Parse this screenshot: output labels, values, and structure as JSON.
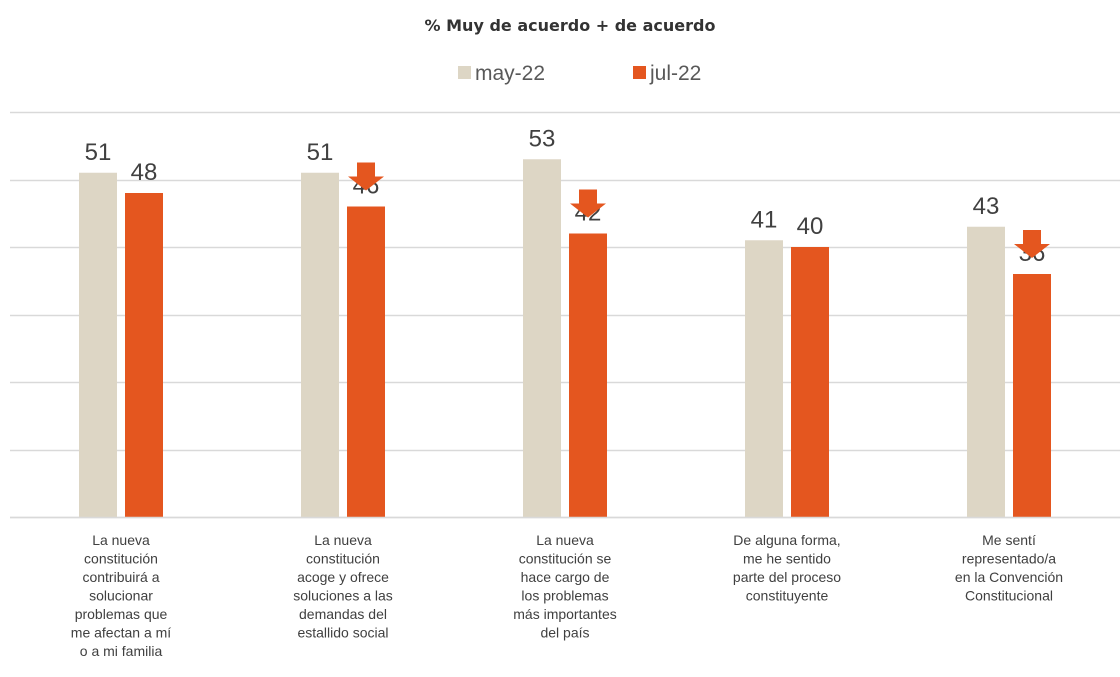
{
  "chart_data": {
    "type": "bar",
    "title": "% Muy de acuerdo + de acuerdo",
    "legend_position": "top",
    "grid": true,
    "ylim": [
      0,
      60
    ],
    "categories": [
      [
        "La nueva",
        "constitución",
        "contribuirá a",
        "solucionar",
        "problemas que",
        "me afectan a mí",
        "o a mi familia"
      ],
      [
        "La nueva",
        "constitución",
        "acoge y ofrece",
        "soluciones a las",
        "demandas del",
        "estallido social"
      ],
      [
        "La nueva",
        "constitución se",
        "hace cargo de",
        "los problemas",
        "más importantes",
        "del país"
      ],
      [
        "De alguna forma,",
        "me he sentido",
        "parte del proceso",
        "constituyente"
      ],
      [
        "Me sentí",
        "representado/a",
        "en la Convención",
        "Constitucional"
      ]
    ],
    "series": [
      {
        "name": "may-22",
        "color": "#DDD6C5",
        "values": [
          51,
          51,
          53,
          41,
          43
        ]
      },
      {
        "name": "jul-22",
        "color": "#E4561F",
        "values": [
          48,
          46,
          42,
          40,
          36
        ]
      }
    ],
    "decline_arrows": [
      false,
      true,
      true,
      false,
      true
    ],
    "arrow_color": "#E4561F",
    "gridline_color": "#D9D9D9",
    "category_label_color": "#404040",
    "value_label_color": "#404040"
  }
}
